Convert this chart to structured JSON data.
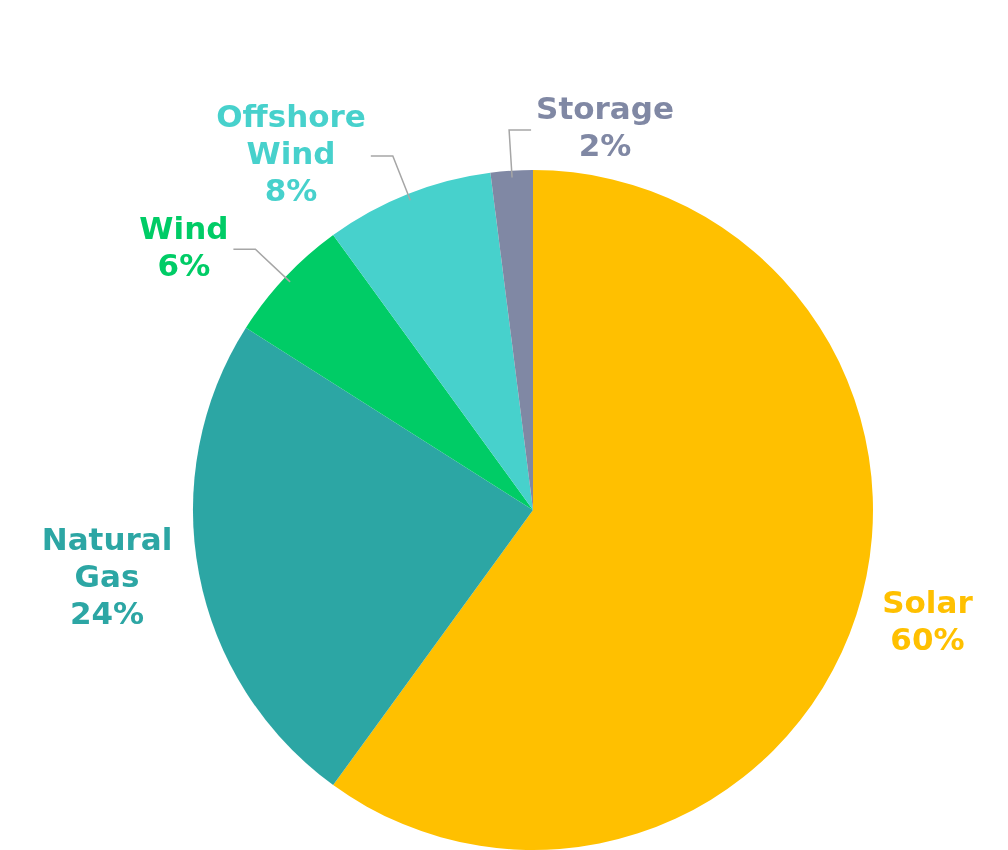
{
  "chart_data": {
    "type": "pie",
    "categories": [
      "Solar",
      "Natural Gas",
      "Wind",
      "Offshore Wind",
      "Storage"
    ],
    "values": [
      60,
      24,
      6,
      8,
      2
    ],
    "colors": [
      "#ffc000",
      "#2ca6a4",
      "#00cc66",
      "#47d1cc",
      "#8088a4"
    ],
    "value_labels": [
      "60%",
      "24%",
      "6%",
      "8%",
      "2%"
    ]
  }
}
